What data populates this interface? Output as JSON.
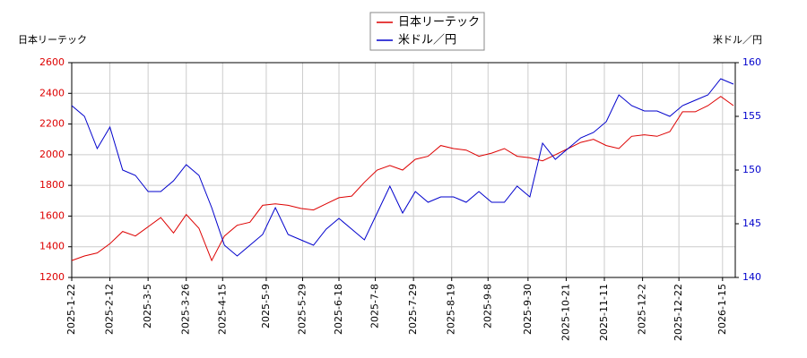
{
  "chart_data": {
    "type": "line",
    "y_label": "日本リーテック",
    "y2_label": "米ドル／円",
    "x": [
      "2025-01-22",
      "2025-01-29",
      "2025-02-05",
      "2025-02-12",
      "2025-02-19",
      "2025-02-26",
      "2025-03-05",
      "2025-03-12",
      "2025-03-19",
      "2025-03-26",
      "2025-04-02",
      "2025-04-09",
      "2025-04-16",
      "2025-04-23",
      "2025-04-30",
      "2025-05-07",
      "2025-05-14",
      "2025-05-21",
      "2025-05-28",
      "2025-06-04",
      "2025-06-11",
      "2025-06-18",
      "2025-06-25",
      "2025-07-02",
      "2025-07-09",
      "2025-07-16",
      "2025-07-23",
      "2025-07-30",
      "2025-08-06",
      "2025-08-13",
      "2025-08-20",
      "2025-08-27",
      "2025-09-03",
      "2025-09-10",
      "2025-09-17",
      "2025-09-24",
      "2025-10-01",
      "2025-10-08",
      "2025-10-15",
      "2025-10-22",
      "2025-10-29",
      "2025-11-05",
      "2025-11-12",
      "2025-11-19",
      "2025-11-26",
      "2025-12-03",
      "2025-12-10",
      "2025-12-17",
      "2025-12-24",
      "2025-12-31",
      "2026-01-07",
      "2026-01-14",
      "2026-01-21"
    ],
    "series": [
      {
        "name": "日本リーテック",
        "color": "#dd0000",
        "values": [
          1310,
          1340,
          1360,
          1420,
          1500,
          1470,
          1530,
          1590,
          1490,
          1610,
          1520,
          1310,
          1470,
          1540,
          1560,
          1670,
          1680,
          1670,
          1650,
          1640,
          1680,
          1720,
          1730,
          1820,
          1900,
          1930,
          1900,
          1970,
          1990,
          2060,
          2040,
          2030,
          1990,
          2010,
          2040,
          1990,
          1980,
          1960,
          2000,
          2040,
          2080,
          2100,
          2060,
          2040,
          2120,
          2130,
          2120,
          2150,
          2280,
          2280,
          2320,
          2380,
          2320
        ]
      },
      {
        "name": "米ドル／円",
        "color": "#0000cc",
        "axis": "y2",
        "values": [
          156,
          155,
          152,
          154,
          150,
          149.5,
          148,
          148,
          149,
          150.5,
          149.5,
          146.5,
          143,
          142,
          143,
          144,
          146.5,
          144,
          143.5,
          143,
          144.5,
          145.5,
          144.5,
          143.5,
          146,
          148.5,
          146,
          148,
          147,
          147.5,
          147.5,
          147,
          148,
          147,
          147,
          148.5,
          147.5,
          152.5,
          151,
          152,
          153,
          153.5,
          154.5,
          157,
          156,
          155.5,
          155.5,
          155,
          156,
          156.5,
          157,
          158.5,
          158
        ]
      }
    ],
    "xlim": [
      "2025-01-22",
      "2026-01-22"
    ],
    "xticks": [
      {
        "value": "2025-01-22",
        "label": "2025-1-22"
      },
      {
        "value": "2025-02-12",
        "label": "2025-2-12"
      },
      {
        "value": "2025-03-05",
        "label": "2025-3-5"
      },
      {
        "value": "2025-03-26",
        "label": "2025-3-26"
      },
      {
        "value": "2025-04-15",
        "label": "2025-4-15"
      },
      {
        "value": "2025-05-09",
        "label": "2025-5-9"
      },
      {
        "value": "2025-05-29",
        "label": "2025-5-29"
      },
      {
        "value": "2025-06-18",
        "label": "2025-6-18"
      },
      {
        "value": "2025-07-08",
        "label": "2025-7-8"
      },
      {
        "value": "2025-07-29",
        "label": "2025-7-29"
      },
      {
        "value": "2025-08-19",
        "label": "2025-8-19"
      },
      {
        "value": "2025-09-08",
        "label": "2025-9-8"
      },
      {
        "value": "2025-09-30",
        "label": "2025-9-30"
      },
      {
        "value": "2025-10-21",
        "label": "2025-10-21"
      },
      {
        "value": "2025-11-11",
        "label": "2025-11-11"
      },
      {
        "value": "2025-12-02",
        "label": "2025-12-2"
      },
      {
        "value": "2025-12-22",
        "label": "2025-12-22"
      },
      {
        "value": "2026-01-15",
        "label": "2026-1-15"
      }
    ],
    "ylim": [
      1200,
      2600
    ],
    "yticks": [
      1200,
      1400,
      1600,
      1800,
      2000,
      2200,
      2400,
      2600
    ],
    "y2lim": [
      140,
      160
    ],
    "y2ticks": [
      140,
      145,
      150,
      155,
      160
    ],
    "grid": true
  }
}
